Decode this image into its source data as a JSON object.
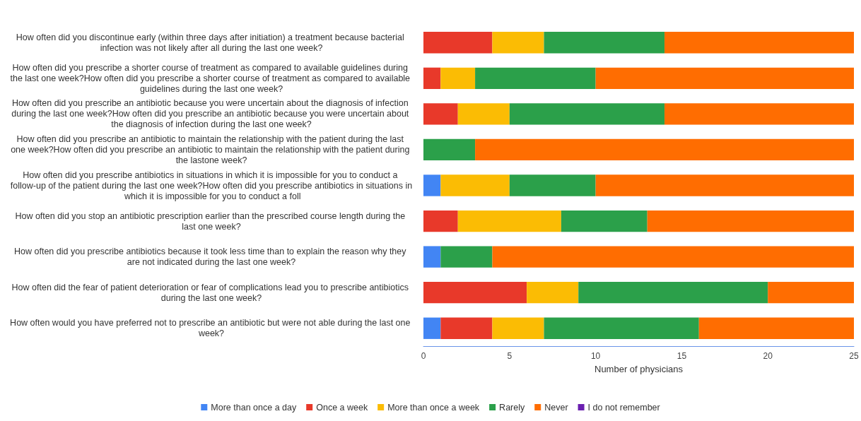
{
  "chart_data": {
    "type": "bar",
    "orientation": "horizontal",
    "stacked": true,
    "xlabel": "Number of physicians",
    "xlim": [
      0,
      25
    ],
    "xticks": [
      0,
      5,
      10,
      15,
      20,
      25
    ],
    "legend": "bottom",
    "categories": [
      "How often did you discontinue early (within three days after initiation) a treatment because bacterial infection was not likely after all during the last one week?",
      "How often did you prescribe a shorter course of treatment as compared to available guidelines during the last one week?How often did you prescribe a shorter course of treatment as compared to available guidelines during the last one week?",
      "How often did you prescribe an antibiotic because you were uncertain about the diagnosis of infection during the last one week?How often did you prescribe an antibiotic because you were uncertain about the diagnosis of infection during the last one week?",
      "How often did you prescribe an antibiotic to maintain the relationship with the patient during the last one week?How often did you prescribe an antibiotic to maintain the relationship with the patient during the lastone week?",
      "How often did you prescribe antibiotics in situations in which it is impossible for you to conduct a follow-up of the patient during the last one week?How often did you prescribe antibiotics in situations in which it is impossible for you to conduct a foll",
      "How often did you stop an antibiotic prescription earlier than the prescribed course length during the last one week?",
      "How often did you prescribe antibiotics because it took less time than to explain the reason why they are not indicated during the last one week?",
      "How often did the fear of patient deterioration or fear of complications lead you to prescribe antibiotics during the last one week?",
      "How often would you have preferred not to prescribe an antibiotic but were not able during the last one week?"
    ],
    "series": [
      {
        "name": "More than once a day",
        "color": "#4285f4",
        "values": [
          0,
          0,
          0,
          0,
          1,
          0,
          1,
          0,
          1
        ]
      },
      {
        "name": "Once a week",
        "color": "#e8392a",
        "values": [
          4,
          1,
          2,
          0,
          0,
          2,
          0,
          6,
          3
        ]
      },
      {
        "name": "More than once a week",
        "color": "#fbbc04",
        "values": [
          3,
          2,
          3,
          0,
          4,
          6,
          0,
          3,
          3
        ]
      },
      {
        "name": "Rarely",
        "color": "#2ba04a",
        "values": [
          7,
          7,
          9,
          3,
          5,
          5,
          3,
          11,
          9
        ]
      },
      {
        "name": "Never",
        "color": "#ff6d01",
        "values": [
          11,
          15,
          11,
          22,
          15,
          12,
          21,
          5,
          9
        ]
      },
      {
        "name": "I do not remember",
        "color": "#6a1fb0",
        "values": [
          0,
          0,
          0,
          0,
          0,
          0,
          0,
          0,
          0
        ]
      }
    ]
  }
}
